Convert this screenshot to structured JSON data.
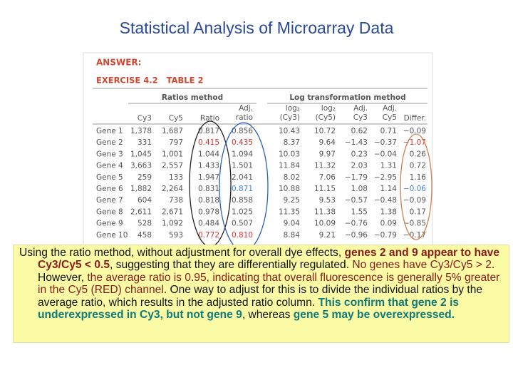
{
  "header": {
    "title": "Statistical Analysis of Microarray Data"
  },
  "figure": {
    "label": "ANSWER:",
    "caption": "EXERCISE 4.2   TABLE 2",
    "groups": [
      "Ratios method",
      "Log transformation method"
    ],
    "columns": [
      [
        "Cy3"
      ],
      [
        "Cy5"
      ],
      [
        "Ratio"
      ],
      [
        "Adj.",
        "ratio"
      ],
      [
        "log₂",
        "(Cy3)"
      ],
      [
        "log₂",
        "(Cy5)"
      ],
      [
        "Adj.",
        "Cy3"
      ],
      [
        "Adj.",
        "Cy5"
      ],
      [
        "Differ."
      ]
    ],
    "rows": [
      [
        "Gene 1",
        "1,378",
        "1,687",
        "0.817",
        "0.856",
        "10.43",
        "10.72",
        "0.62",
        "0.71",
        "−0.09"
      ],
      [
        "Gene 2",
        "331",
        "797",
        "0.415",
        "0.435",
        "8.37",
        "9.64",
        "−1.43",
        "−0.37",
        "−1.07"
      ],
      [
        "Gene 3",
        "1,045",
        "1,001",
        "1.044",
        "1.094",
        "10.03",
        "9.97",
        "0.23",
        "−0.04",
        "0.26"
      ],
      [
        "Gene 4",
        "3,663",
        "2,557",
        "1.433",
        "1.501",
        "11.84",
        "11.32",
        "2.03",
        "1.31",
        "0.72"
      ],
      [
        "Gene 5",
        "259",
        "133",
        "1.947",
        "2.041",
        "8.02",
        "7.06",
        "−1.79",
        "−2.95",
        "1.16"
      ],
      [
        "Gene 6",
        "1,882",
        "2,264",
        "0.831",
        "0.871",
        "10.88",
        "11.15",
        "1.08",
        "1.14",
        "−0.06"
      ],
      [
        "Gene 7",
        "604",
        "738",
        "0.818",
        "0.858",
        "9.25",
        "9.53",
        "−0.57",
        "−0.48",
        "−0.09"
      ],
      [
        "Gene 8",
        "2,611",
        "2,671",
        "0.978",
        "1.025",
        "11.35",
        "11.38",
        "1.55",
        "1.38",
        "0.17"
      ],
      [
        "Gene 9",
        "528",
        "1,092",
        "0.484",
        "0.507",
        "9.04",
        "10.09",
        "−0.76",
        "0.09",
        "−0.85"
      ],
      [
        "Gene 10",
        "458",
        "593",
        "0.772",
        "0.810",
        "8.84",
        "9.21",
        "−0.96",
        "−0.79",
        "−0.17"
      ]
    ]
  },
  "note": {
    "segments": [
      "Using the ratio method, without adjustment for overall dye effects, ",
      "genes 2 and 9 appear to have Cy3/Cy5 < 0.5",
      ", suggesting that they are differentially regulated. ",
      "No genes have Cy3/Cy5 > 2",
      ". However, ",
      "the average ratio is 0.95, indicating that overall fluorescence is generally 5% greater in the Cy5 (RED) channel",
      ". One way to adjust for this is to divide the individual ratios by the average ratio, which results in the adjusted ratio column. ",
      "This confirm that gene 2 is underexpressed in Cy3, but not gene 9",
      ", whereas ",
      "gene 5 may be overexpressed."
    ]
  }
}
